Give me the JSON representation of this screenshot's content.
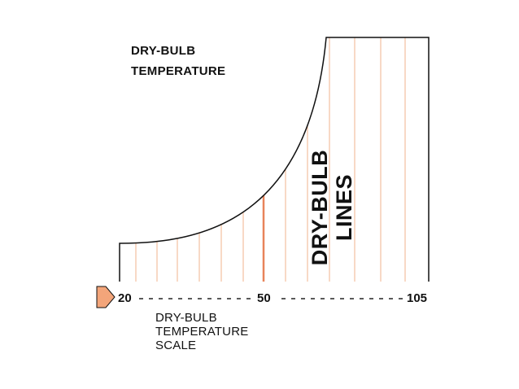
{
  "title": {
    "line1": "DRY-BULB",
    "line2": "TEMPERATURE"
  },
  "region_label": {
    "line1": "DRY-BULB",
    "line2": "LINES"
  },
  "scale": {
    "label_line1": "DRY-BULB",
    "label_line2": "TEMPERATURE",
    "label_line3": "SCALE",
    "ticks": [
      "20",
      "50",
      "105"
    ]
  },
  "colors": {
    "outline": "#111111",
    "dry_bulb_line": "#f0b38c",
    "highlight_line": "#e8845a",
    "arrow_fill": "#f3a57a",
    "dashes": "#222222"
  },
  "icons": {
    "scale_arrow": "right-arrow-icon"
  }
}
